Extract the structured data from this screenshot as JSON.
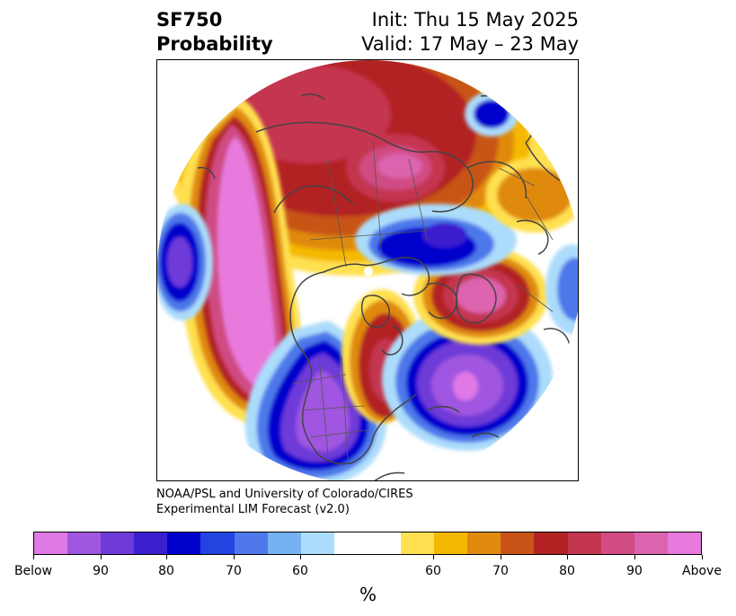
{
  "title": {
    "variable": "SF750",
    "subtitle": "Probability",
    "init": "Init: Thu 15 May 2025",
    "valid": "Valid: 17 May – 23 May"
  },
  "credit": {
    "line1": "NOAA/PSL and University of Colorado/CIRES",
    "line2": "Experimental LIM Forecast (v2.0)"
  },
  "colorbar": {
    "unit": "%",
    "colors": [
      "#e078e6",
      "#a057e0",
      "#6e3ad8",
      "#3a1fcf",
      "#0000cd",
      "#2244e0",
      "#4e78ea",
      "#76b2f2",
      "#acdcfb",
      "#ffffff",
      "#ffe050",
      "#f5b800",
      "#e08a10",
      "#c85418",
      "#b22222",
      "#c43650",
      "#d04c82",
      "#dc64ae",
      "#e87ade"
    ],
    "labels": [
      "Below",
      "90",
      "80",
      "70",
      "60",
      "60",
      "70",
      "80",
      "90",
      "Above"
    ]
  },
  "map": {
    "projection": "north-polar-stereographic",
    "coastline_color": "#444444"
  }
}
